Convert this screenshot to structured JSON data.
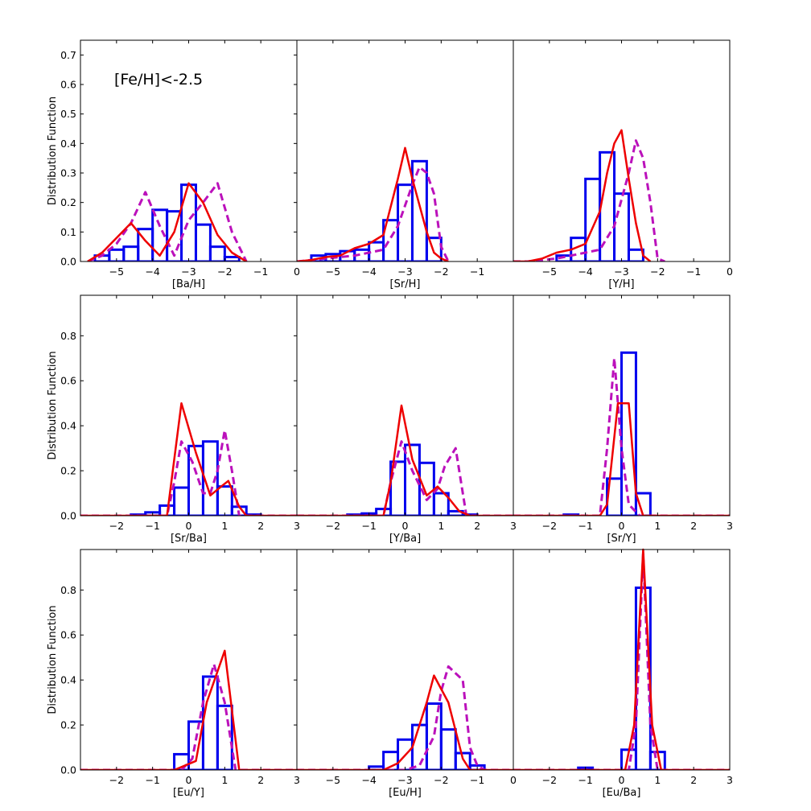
{
  "figure": {
    "annotation": "[Fe/H]<-2.5",
    "ylabel": "Distribution Function"
  },
  "colors": {
    "histogram": "#0000ee",
    "solid_line": "#ee0000",
    "dashed_line": "#bb11bb",
    "axes": "#000000"
  },
  "chart_data": [
    {
      "id": "ba-h",
      "type": "bar",
      "xlabel": "[Ba/H]",
      "ylabel": "Distribution Function",
      "xlim": [
        -6,
        0
      ],
      "ylim": [
        0,
        0.75
      ],
      "xticks": [
        -5,
        -4,
        -3,
        -2,
        -1,
        0
      ],
      "xtick_labels": [
        "−5",
        "−4",
        "−3",
        "−2",
        "−1",
        "0"
      ],
      "yticks": [
        0.0,
        0.1,
        0.2,
        0.3,
        0.4,
        0.5,
        0.6,
        0.7
      ],
      "ytick_labels": [
        "0.0",
        "0.1",
        "0.2",
        "0.3",
        "0.4",
        "0.5",
        "0.6",
        "0.7"
      ],
      "hist": {
        "edges": [
          -5.6,
          -5.2,
          -4.8,
          -4.4,
          -4.0,
          -3.6,
          -3.2,
          -2.8,
          -2.4,
          -2.0,
          -1.6
        ],
        "values": [
          0.02,
          0.04,
          0.05,
          0.11,
          0.175,
          0.17,
          0.26,
          0.125,
          0.05,
          0.015
        ]
      },
      "solid": {
        "x": [
          -5.8,
          -5.4,
          -5.0,
          -4.6,
          -4.2,
          -3.8,
          -3.4,
          -3.0,
          -2.6,
          -2.2,
          -1.8,
          -1.4
        ],
        "y": [
          0.0,
          0.03,
          0.08,
          0.13,
          0.07,
          0.02,
          0.1,
          0.265,
          0.2,
          0.09,
          0.03,
          0.0
        ]
      },
      "dashed": {
        "x": [
          -5.8,
          -5.4,
          -5.0,
          -4.6,
          -4.2,
          -3.8,
          -3.4,
          -3.0,
          -2.6,
          -2.2,
          -1.8,
          -1.4
        ],
        "y": [
          0.0,
          0.02,
          0.06,
          0.13,
          0.235,
          0.12,
          0.02,
          0.14,
          0.2,
          0.265,
          0.1,
          0.0
        ]
      }
    },
    {
      "id": "sr-h",
      "type": "bar",
      "xlabel": "[Sr/H]",
      "ylabel": "",
      "xlim": [
        -6,
        0
      ],
      "ylim": [
        0,
        0.75
      ],
      "xticks": [
        -5,
        -4,
        -3,
        -2,
        -1
      ],
      "xtick_labels": [
        "−5",
        "−4",
        "−3",
        "−2",
        "−1"
      ],
      "yticks": [],
      "ytick_labels": [],
      "hist": {
        "edges": [
          -5.6,
          -5.2,
          -4.8,
          -4.4,
          -4.0,
          -3.6,
          -3.2,
          -2.8,
          -2.4,
          -2.0
        ],
        "values": [
          0.02,
          0.025,
          0.035,
          0.04,
          0.065,
          0.14,
          0.26,
          0.34,
          0.08
        ]
      },
      "solid": {
        "x": [
          -6.0,
          -5.6,
          -5.2,
          -4.8,
          -4.4,
          -4.0,
          -3.6,
          -3.2,
          -3.0,
          -2.8,
          -2.4,
          -2.2,
          -2.0,
          -1.8
        ],
        "y": [
          0.0,
          0.005,
          0.015,
          0.02,
          0.045,
          0.06,
          0.09,
          0.28,
          0.385,
          0.28,
          0.1,
          0.03,
          0.01,
          0.0
        ]
      },
      "dashed": {
        "x": [
          -6.0,
          -5.6,
          -5.2,
          -4.8,
          -4.4,
          -4.0,
          -3.6,
          -3.2,
          -2.8,
          -2.6,
          -2.4,
          -2.2,
          -2.0,
          -1.8
        ],
        "y": [
          0.0,
          0.005,
          0.01,
          0.015,
          0.02,
          0.03,
          0.04,
          0.12,
          0.26,
          0.32,
          0.3,
          0.23,
          0.05,
          0.0
        ]
      }
    },
    {
      "id": "y-h",
      "type": "bar",
      "xlabel": "[Y/H]",
      "ylabel": "",
      "xlim": [
        -6,
        0
      ],
      "ylim": [
        0,
        0.75
      ],
      "xticks": [
        -5,
        -4,
        -3,
        -2,
        -1,
        0
      ],
      "xtick_labels": [
        "−5",
        "−4",
        "−3",
        "−2",
        "−1",
        "0"
      ],
      "yticks": [],
      "ytick_labels": [],
      "hist": {
        "edges": [
          -4.8,
          -4.4,
          -4.0,
          -3.6,
          -3.2,
          -2.8,
          -2.4
        ],
        "values": [
          0.02,
          0.08,
          0.28,
          0.37,
          0.23,
          0.04
        ]
      },
      "solid": {
        "x": [
          -6.0,
          -5.6,
          -5.2,
          -4.8,
          -4.4,
          -4.0,
          -3.6,
          -3.4,
          -3.2,
          -3.0,
          -2.8,
          -2.6,
          -2.4,
          -2.2
        ],
        "y": [
          0.0,
          0.0,
          0.01,
          0.03,
          0.04,
          0.06,
          0.17,
          0.3,
          0.4,
          0.445,
          0.28,
          0.13,
          0.02,
          0.0
        ]
      },
      "dashed": {
        "x": [
          -6.0,
          -5.6,
          -5.2,
          -4.8,
          -4.4,
          -4.0,
          -3.6,
          -3.2,
          -2.8,
          -2.6,
          -2.4,
          -2.2,
          -2.0,
          -1.8
        ],
        "y": [
          0.0,
          0.0,
          0.005,
          0.01,
          0.02,
          0.03,
          0.04,
          0.12,
          0.3,
          0.41,
          0.35,
          0.2,
          0.01,
          0.0
        ]
      }
    },
    {
      "id": "sr-ba",
      "type": "bar",
      "xlabel": "[Sr/Ba]",
      "ylabel": "Distribution Function",
      "xlim": [
        -3,
        3
      ],
      "ylim": [
        0,
        0.98
      ],
      "xticks": [
        -2,
        -1,
        0,
        1,
        2,
        3
      ],
      "xtick_labels": [
        "−2",
        "−1",
        "0",
        "1",
        "2",
        "3"
      ],
      "yticks": [
        0.0,
        0.2,
        0.4,
        0.6,
        0.8
      ],
      "ytick_labels": [
        "0.0",
        "0.2",
        "0.4",
        "0.6",
        "0.8"
      ],
      "hist": {
        "edges": [
          -1.6,
          -1.2,
          -0.8,
          -0.4,
          0.0,
          0.4,
          0.8,
          1.2,
          1.6,
          2.0
        ],
        "values": [
          0.005,
          0.015,
          0.045,
          0.125,
          0.31,
          0.33,
          0.13,
          0.04,
          0.005
        ]
      },
      "solid": {
        "x": [
          -3.0,
          -0.6,
          -0.2,
          0.2,
          0.6,
          0.9,
          1.1,
          1.4,
          1.6,
          3.0
        ],
        "y": [
          0.0,
          0.0,
          0.5,
          0.28,
          0.09,
          0.13,
          0.155,
          0.04,
          0.0,
          0.0
        ]
      },
      "dashed": {
        "x": [
          -3.0,
          -0.6,
          -0.4,
          -0.2,
          0.1,
          0.4,
          0.6,
          0.8,
          1.0,
          1.2,
          1.4,
          3.0
        ],
        "y": [
          0.0,
          0.0,
          0.15,
          0.33,
          0.24,
          0.1,
          0.1,
          0.2,
          0.38,
          0.2,
          0.0,
          0.0
        ]
      }
    },
    {
      "id": "y-ba",
      "type": "bar",
      "xlabel": "[Y/Ba]",
      "ylabel": "",
      "xlim": [
        -3,
        3
      ],
      "ylim": [
        0,
        0.98
      ],
      "xticks": [
        -2,
        -1,
        0,
        1,
        2,
        3
      ],
      "xtick_labels": [
        "−2",
        "−1",
        "0",
        "1",
        "2",
        "3"
      ],
      "yticks": [],
      "ytick_labels": [],
      "hist": {
        "edges": [
          -1.6,
          -1.2,
          -0.8,
          -0.4,
          0.0,
          0.4,
          0.8,
          1.2,
          1.6,
          2.0
        ],
        "values": [
          0.005,
          0.01,
          0.03,
          0.24,
          0.315,
          0.235,
          0.1,
          0.02,
          0.005
        ]
      },
      "solid": {
        "x": [
          -3.0,
          -0.6,
          -0.4,
          -0.1,
          0.2,
          0.6,
          0.9,
          1.2,
          1.5,
          1.8,
          3.0
        ],
        "y": [
          0.0,
          0.0,
          0.15,
          0.49,
          0.25,
          0.09,
          0.13,
          0.08,
          0.02,
          0.0,
          0.0
        ]
      },
      "dashed": {
        "x": [
          -3.0,
          -0.6,
          -0.4,
          -0.1,
          0.2,
          0.6,
          0.9,
          1.1,
          1.4,
          1.7,
          3.0
        ],
        "y": [
          0.0,
          0.0,
          0.15,
          0.33,
          0.2,
          0.07,
          0.12,
          0.22,
          0.3,
          0.0,
          0.0
        ]
      }
    },
    {
      "id": "sr-y",
      "type": "bar",
      "xlabel": "[Sr/Y]",
      "ylabel": "",
      "xlim": [
        -3,
        3
      ],
      "ylim": [
        0,
        0.98
      ],
      "xticks": [
        -2,
        -1,
        0,
        1,
        2,
        3
      ],
      "xtick_labels": [
        "−2",
        "−1",
        "0",
        "1",
        "2",
        "3"
      ],
      "yticks": [],
      "ytick_labels": [],
      "hist": {
        "edges": [
          -1.6,
          -1.2,
          -0.8,
          -0.4,
          -0.0,
          0.4,
          0.8
        ],
        "values": [
          0.005,
          0.0,
          0.0,
          0.165,
          0.725,
          0.1
        ]
      },
      "solid": {
        "x": [
          -3.0,
          -0.6,
          -0.4,
          -0.1,
          0.2,
          0.4,
          0.6,
          3.0
        ],
        "y": [
          0.0,
          0.0,
          0.05,
          0.5,
          0.5,
          0.1,
          0.0,
          0.0
        ]
      },
      "dashed": {
        "x": [
          -3.0,
          -0.6,
          -0.4,
          -0.2,
          0.0,
          0.2,
          0.5,
          3.0
        ],
        "y": [
          0.0,
          0.0,
          0.3,
          0.7,
          0.3,
          0.05,
          0.0,
          0.0
        ]
      }
    },
    {
      "id": "eu-y",
      "type": "bar",
      "xlabel": "[Eu/Y]",
      "ylabel": "Distribution Function",
      "xlim": [
        -3,
        3
      ],
      "ylim": [
        0,
        0.98
      ],
      "xticks": [
        -2,
        -1,
        0,
        1,
        2,
        3
      ],
      "xtick_labels": [
        "−2",
        "−1",
        "0",
        "1",
        "2",
        "3"
      ],
      "yticks": [
        0.0,
        0.2,
        0.4,
        0.6,
        0.8
      ],
      "ytick_labels": [
        "0.0",
        "0.2",
        "0.4",
        "0.6",
        "0.8"
      ],
      "hist": {
        "edges": [
          -0.4,
          0.0,
          0.4,
          0.8,
          1.2
        ],
        "values": [
          0.07,
          0.215,
          0.415,
          0.285
        ]
      },
      "solid": {
        "x": [
          -3.0,
          -0.4,
          0.2,
          0.5,
          1.0,
          1.4,
          3.0
        ],
        "y": [
          0.0,
          0.0,
          0.04,
          0.3,
          0.53,
          0.0,
          0.0
        ]
      },
      "dashed": {
        "x": [
          -3.0,
          -0.2,
          0.1,
          0.4,
          0.7,
          1.0,
          1.3,
          3.0
        ],
        "y": [
          0.0,
          0.0,
          0.05,
          0.3,
          0.47,
          0.3,
          0.0,
          0.0
        ]
      }
    },
    {
      "id": "eu-h",
      "type": "bar",
      "xlabel": "[Eu/H]",
      "ylabel": "",
      "xlim": [
        -6,
        0
      ],
      "ylim": [
        0,
        0.98
      ],
      "xticks": [
        -5,
        -4,
        -3,
        -2,
        -1,
        0
      ],
      "xtick_labels": [
        "−5",
        "−4",
        "−3",
        "−2",
        "−1",
        "0"
      ],
      "yticks": [],
      "ytick_labels": [],
      "hist": {
        "edges": [
          -4.0,
          -3.6,
          -3.2,
          -2.8,
          -2.4,
          -2.0,
          -1.6,
          -1.2,
          -0.8
        ],
        "values": [
          0.015,
          0.08,
          0.135,
          0.2,
          0.295,
          0.18,
          0.075,
          0.02
        ]
      },
      "solid": {
        "x": [
          -6.0,
          -3.6,
          -3.2,
          -2.8,
          -2.4,
          -2.2,
          -1.8,
          -1.4,
          -1.2,
          0.0
        ],
        "y": [
          0.0,
          0.0,
          0.03,
          0.1,
          0.3,
          0.42,
          0.3,
          0.05,
          0.0,
          0.0
        ]
      },
      "dashed": {
        "x": [
          -6.0,
          -3.0,
          -2.6,
          -2.2,
          -2.0,
          -1.8,
          -1.4,
          -1.2,
          -1.0,
          -0.8,
          0.0
        ],
        "y": [
          0.0,
          0.0,
          0.02,
          0.15,
          0.35,
          0.46,
          0.4,
          0.1,
          0.02,
          0.0,
          0.0
        ]
      }
    },
    {
      "id": "eu-ba",
      "type": "bar",
      "xlabel": "[Eu/Ba]",
      "ylabel": "",
      "xlim": [
        -3,
        3
      ],
      "ylim": [
        0,
        0.98
      ],
      "xticks": [
        -2,
        -1,
        0,
        1,
        2,
        3
      ],
      "xtick_labels": [
        "−2",
        "−1",
        "0",
        "1",
        "2",
        "3"
      ],
      "yticks": [],
      "ytick_labels": [],
      "hist": {
        "edges": [
          -1.2,
          -0.8,
          -0.4,
          0.0,
          0.4,
          0.8,
          1.2
        ],
        "values": [
          0.01,
          0.0,
          0.0,
          0.09,
          0.81,
          0.08
        ]
      },
      "solid": {
        "x": [
          -3.0,
          0.1,
          0.35,
          0.6,
          0.85,
          1.1,
          3.0
        ],
        "y": [
          0.0,
          0.0,
          0.2,
          0.98,
          0.2,
          0.0,
          0.0
        ]
      },
      "dashed": {
        "x": [
          -3.0,
          0.2,
          0.4,
          0.6,
          0.8,
          1.0,
          3.0
        ],
        "y": [
          0.0,
          0.0,
          0.2,
          0.96,
          0.2,
          0.0,
          0.0
        ]
      }
    }
  ]
}
